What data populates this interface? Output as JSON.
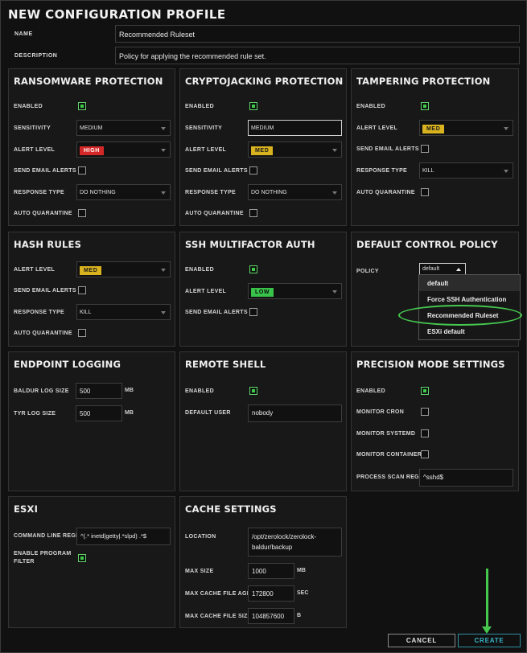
{
  "title": "NEW CONFIGURATION PROFILE",
  "name_label": "NAME",
  "name_value": "Recommended Ruleset",
  "description_label": "DESCRIPTION",
  "description_value": "Policy for applying the recommended rule set.",
  "labels": {
    "enabled": "ENABLED",
    "sensitivity": "SENSITIVITY",
    "alert_level": "ALERT LEVEL",
    "send_email_alerts": "SEND EMAIL ALERTS",
    "response_type": "RESPONSE TYPE",
    "auto_quarantine": "AUTO QUARANTINE"
  },
  "ransomware": {
    "title": "RANSOMWARE PROTECTION",
    "sensitivity": "MEDIUM",
    "alert_level": "HIGH",
    "response_type": "DO NOTHING"
  },
  "cryptojacking": {
    "title": "CRYPTOJACKING PROTECTION",
    "sensitivity": "MEDIUM",
    "alert_level": "MED",
    "response_type": "DO NOTHING"
  },
  "tampering": {
    "title": "TAMPERING PROTECTION",
    "alert_level": "MED",
    "response_type": "KILL"
  },
  "hash_rules": {
    "title": "HASH RULES",
    "alert_level": "MED",
    "response_type": "KILL"
  },
  "ssh_mfa": {
    "title": "SSH MULTIFACTOR AUTH",
    "alert_level": "LOW"
  },
  "default_policy": {
    "title": "DEFAULT CONTROL POLICY",
    "policy_label": "POLICY",
    "policy_value": "default",
    "options": [
      "default",
      "Force SSH Authentication",
      "Recommended Ruleset",
      "ESXi default"
    ]
  },
  "endpoint_logging": {
    "title": "ENDPOINT LOGGING",
    "baldur_label": "BALDUR LOG SIZE",
    "baldur_value": "500",
    "baldur_unit": "MB",
    "tyr_label": "TYR LOG SIZE",
    "tyr_value": "500",
    "tyr_unit": "MB"
  },
  "remote_shell": {
    "title": "REMOTE SHELL",
    "default_user_label": "DEFAULT USER",
    "default_user_value": "nobody"
  },
  "precision": {
    "title": "PRECISION MODE SETTINGS",
    "monitor_cron": "MONITOR CRON",
    "monitor_systemd": "MONITOR SYSTEMD",
    "monitor_containerd": "MONITOR CONTAINERD",
    "process_scan_label": "PROCESS SCAN REGEX",
    "process_scan_value": "^sshd$"
  },
  "esxi": {
    "title": "ESXI",
    "cmd_label": "COMMAND LINE REGEX",
    "cmd_value": "^(.* inetd|getty|.*slpd) .*$",
    "filter_label_1": "ENABLE PROGRAM",
    "filter_label_2": "FILTER"
  },
  "cache": {
    "title": "CACHE SETTINGS",
    "location_label": "LOCATION",
    "location_line1": "/opt/zerolock/zerolock-",
    "location_line2": "baldur/backup",
    "max_size_label": "MAX SIZE",
    "max_size_value": "1000",
    "max_size_unit": "MB",
    "max_age_label": "MAX CACHE FILE AGE",
    "max_age_value": "172800",
    "max_age_unit": "SEC",
    "max_file_label": "MAX CACHE FILE SIZE",
    "max_file_value": "104857600",
    "max_file_unit": "B"
  },
  "buttons": {
    "cancel": "CANCEL",
    "create": "CREATE"
  },
  "colors": {
    "accent_green": "#46c84f",
    "high": "#d42828",
    "med": "#d9b21f",
    "low": "#38c24a",
    "create": "#39b6c8"
  }
}
